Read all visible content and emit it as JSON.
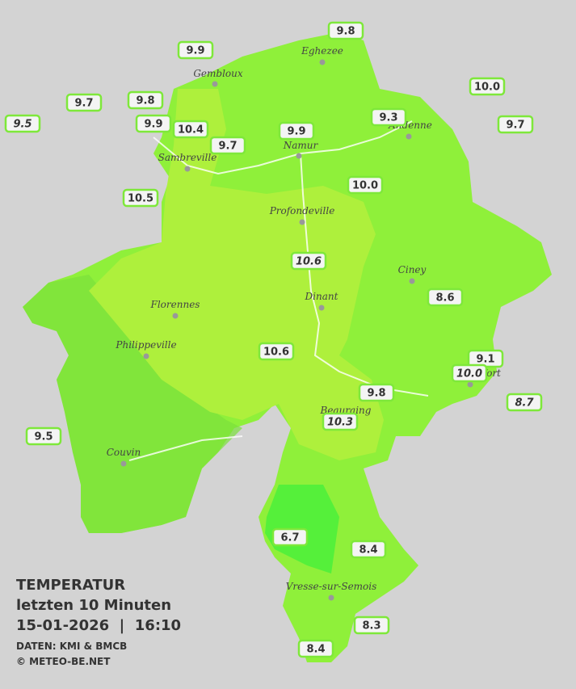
{
  "map": {
    "cities": [
      "Eghezee",
      "Gembloux",
      "Andenne",
      "Namur",
      "Sambreville",
      "Profondeville",
      "Ciney",
      "Dinant",
      "Florennes",
      "Philippeville",
      "Rochefort",
      "Beauraing",
      "Couvin",
      "Vresse-sur-Semois"
    ],
    "stations": [
      "9.8",
      "9.9",
      "9.7",
      "9.8",
      "10.0",
      "9.5",
      "9.9",
      "10.4",
      "9.7",
      "9.9",
      "9.3",
      "9.7",
      "10.5",
      "10.0",
      "10.6",
      "8.6",
      "10.6",
      "9.1",
      "10.0",
      "8.7",
      "9.8",
      "10.3",
      "9.5",
      "6.7",
      "8.4",
      "8.3",
      "8.4"
    ]
  },
  "legend": {
    "title": "TEMPERATUR",
    "period": "letzten 10 Minuten",
    "datetime": "15-01-2026  |  16:10",
    "source": "DATEN: KMI & BMCB",
    "copyright": "© METEO-BE.NET"
  }
}
